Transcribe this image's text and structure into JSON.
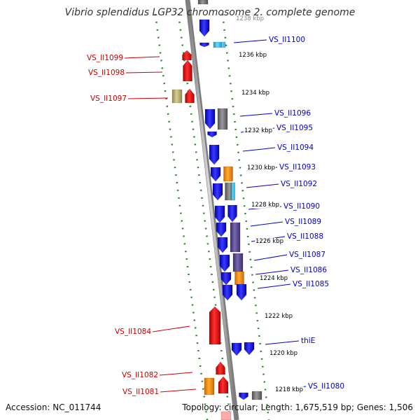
{
  "title": "Vibrio splendidus LGP32 chromosome 2, complete genome",
  "footer": {
    "accession": "Accession: NC_011744",
    "stats": "Topology: circular; Length: 1,675,519 bp; Genes: 1,506"
  },
  "colors": {
    "forward_gene": "#e60000",
    "reverse_gene": "#1a1aee",
    "label_left": "#cc0000",
    "label_right": "#0000cc",
    "guide_line": "#2a8a2a",
    "backbone": "#8c8c8c",
    "orange": "#ff8c00",
    "cyan": "#33bbee",
    "dark_gray": "#6e6e6e",
    "slate": "#5a4a8a",
    "khaki": "#b8b070"
  },
  "scale_labels": [
    "1238 kbp",
    "1236 kbp",
    "1234 kbp",
    "1232 kbp",
    "1230 kbp",
    "1228 kbp",
    "1226 kbp",
    "1224 kbp",
    "1222 kbp",
    "1220 kbp",
    "1218 kbp"
  ],
  "left_genes": [
    "VS_II1099",
    "VS_II1098",
    "VS_II1097",
    "VS_II1084",
    "VS_II1082",
    "VS_II1081"
  ],
  "right_genes": [
    "VS_II1100",
    "VS_II1096",
    "VS_II1095",
    "VS_II1094",
    "VS_II1093",
    "VS_II1092",
    "VS_II1090",
    "VS_II1089",
    "VS_II1088",
    "VS_II1087",
    "VS_II1086",
    "VS_II1085",
    "thiE",
    "VS_II1080"
  ]
}
